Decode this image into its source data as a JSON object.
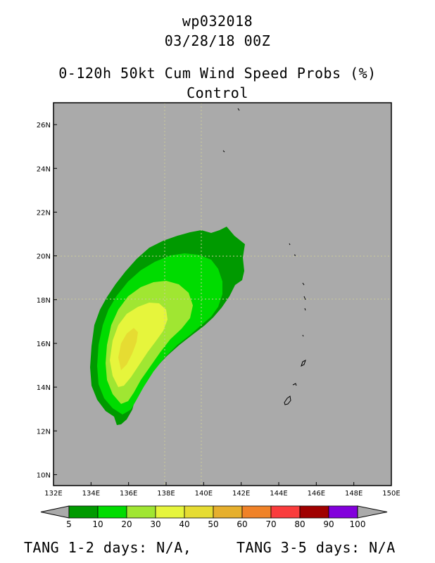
{
  "header": {
    "storm_id": "wp032018",
    "datetime": "03/28/18 00Z",
    "product": "0-120h 50kt Cum Wind Speed Probs (%)",
    "run": "Control"
  },
  "map": {
    "lon_ticks": [
      "132E",
      "134E",
      "136E",
      "138E",
      "140E",
      "142E",
      "144E",
      "146E",
      "148E",
      "150E"
    ],
    "lat_ticks": [
      "10N",
      "12N",
      "14N",
      "16N",
      "18N",
      "20N",
      "22N",
      "24N",
      "26N"
    ],
    "lon_range": [
      132,
      150
    ],
    "lat_range": [
      9.5,
      27
    ],
    "background_color": "#aaaaaa",
    "grid": true
  },
  "legend": {
    "labels": [
      "5",
      "10",
      "20",
      "30",
      "40",
      "50",
      "60",
      "70",
      "80",
      "90",
      "100"
    ],
    "colors": [
      "#009a00",
      "#00dc00",
      "#a0e632",
      "#e6f53c",
      "#e6dc32",
      "#e6af2d",
      "#f08228",
      "#fa3c3c",
      "#a00000",
      "#8200dc"
    ]
  },
  "footer": {
    "tang_12": "TANG 1-2 days:  N/A,",
    "tang_35": "TANG 3-5 days:  N/A"
  }
}
